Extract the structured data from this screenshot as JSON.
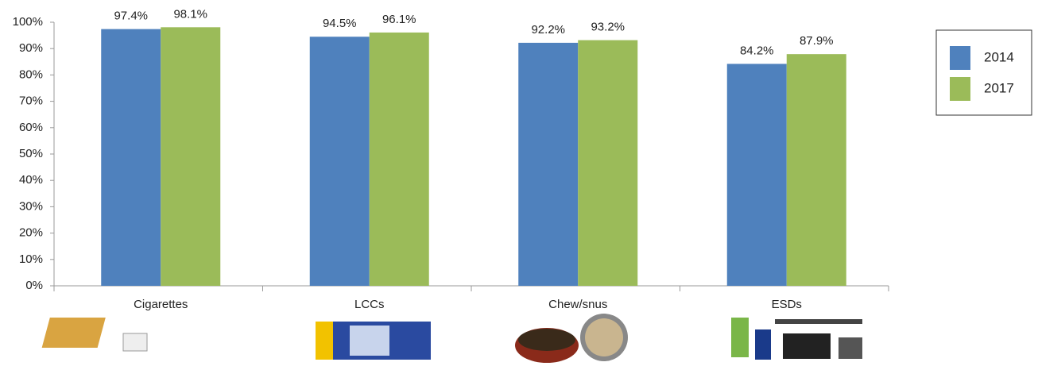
{
  "chart_data": {
    "type": "bar",
    "categories": [
      "Cigarettes",
      "LCCs",
      "Chew/snus",
      "ESDs"
    ],
    "series": [
      {
        "name": "2014",
        "color": "#4f81bd",
        "values": [
          97.4,
          94.5,
          92.2,
          84.2
        ],
        "value_labels": [
          "97.4%",
          "94.5%",
          "92.2%",
          "84.2%"
        ]
      },
      {
        "name": "2017",
        "color": "#9bbb59",
        "values": [
          98.1,
          96.1,
          93.2,
          87.9
        ],
        "value_labels": [
          "98.1%",
          "96.1%",
          "93.2%",
          "87.9%"
        ]
      }
    ],
    "ylim": [
      0,
      100
    ],
    "yticks": [
      {
        "value": 0,
        "label": "0%"
      },
      {
        "value": 10,
        "label": "10%"
      },
      {
        "value": 20,
        "label": "20%"
      },
      {
        "value": 30,
        "label": "30%"
      },
      {
        "value": 40,
        "label": "40%"
      },
      {
        "value": 50,
        "label": "50%"
      },
      {
        "value": 60,
        "label": "60%"
      },
      {
        "value": 70,
        "label": "70%"
      },
      {
        "value": 80,
        "label": "80%"
      },
      {
        "value": 90,
        "label": "90%"
      },
      {
        "value": 100,
        "label": "100%"
      }
    ],
    "grid": false,
    "legend": "right"
  }
}
